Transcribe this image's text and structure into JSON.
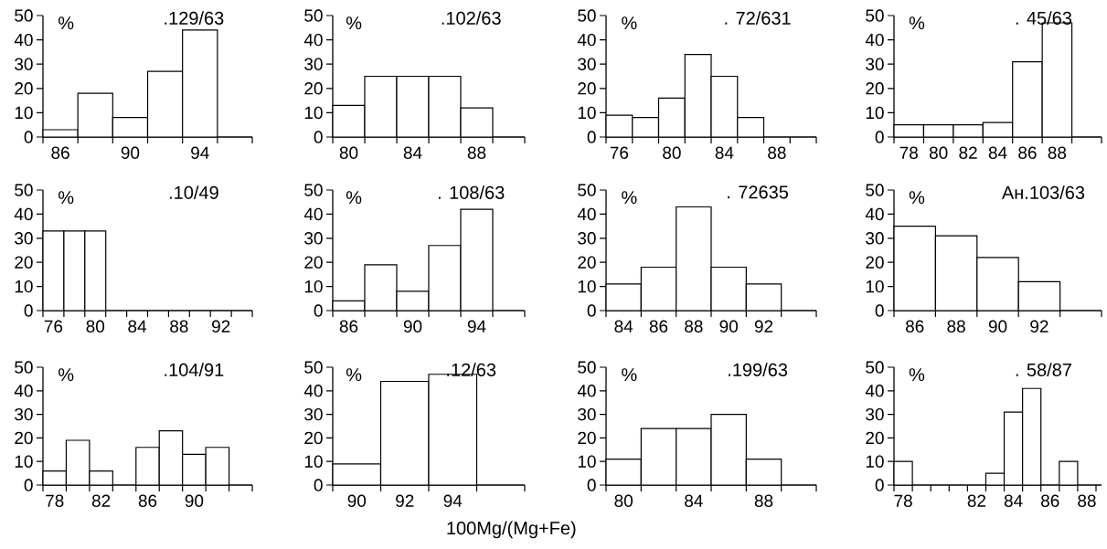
{
  "chart_data": [
    {
      "type": "histogram",
      "title": ".129/63",
      "ylabel": "%",
      "color": "#ffffff",
      "bins": [
        85,
        87,
        89,
        91,
        93,
        95
      ],
      "values": [
        3,
        18,
        8,
        27,
        44
      ],
      "xlim": [
        85,
        97
      ],
      "ylim": [
        0,
        50
      ],
      "yticks": [
        0,
        10,
        20,
        30,
        40,
        50
      ],
      "xticks": [
        {
          "value": 85,
          "label": null
        },
        86,
        {
          "value": 87,
          "label": null
        },
        {
          "value": 89,
          "label": null
        },
        90,
        {
          "value": 91,
          "label": null
        },
        {
          "value": 93,
          "label": null
        },
        94,
        {
          "value": 95,
          "label": null
        },
        {
          "value": 97,
          "label": null
        }
      ]
    },
    {
      "type": "histogram",
      "title": ".102/63",
      "ylabel": "%",
      "color": "#ffffff",
      "bins": [
        79,
        81,
        83,
        85,
        87,
        89
      ],
      "values": [
        13,
        25,
        25,
        25,
        12
      ],
      "xlim": [
        79,
        91
      ],
      "ylim": [
        0,
        50
      ],
      "yticks": [
        0,
        10,
        20,
        30,
        40,
        50
      ],
      "xticks": [
        {
          "value": 79,
          "label": null
        },
        80,
        {
          "value": 81,
          "label": null
        },
        {
          "value": 83,
          "label": null
        },
        84,
        {
          "value": 85,
          "label": null
        },
        {
          "value": 87,
          "label": null
        },
        88,
        {
          "value": 89,
          "label": null
        },
        {
          "value": 91,
          "label": null
        }
      ]
    },
    {
      "type": "histogram",
      "title": ". 72/631",
      "ylabel": "%",
      "color": "#ffffff",
      "bins": [
        75,
        77,
        79,
        81,
        83,
        85,
        87
      ],
      "values": [
        9,
        8,
        16,
        34,
        25,
        8
      ],
      "xlim": [
        75,
        91
      ],
      "ylim": [
        0,
        50
      ],
      "yticks": [
        0,
        10,
        20,
        30,
        40,
        50
      ],
      "xticks": [
        {
          "value": 75,
          "label": null
        },
        76,
        {
          "value": 77,
          "label": null
        },
        {
          "value": 79,
          "label": null
        },
        80,
        {
          "value": 81,
          "label": null
        },
        {
          "value": 83,
          "label": null
        },
        84,
        {
          "value": 85,
          "label": null
        },
        {
          "value": 87,
          "label": null
        },
        88,
        {
          "value": 89,
          "label": null
        },
        {
          "value": 91,
          "label": null
        }
      ]
    },
    {
      "type": "histogram",
      "title": ". 45/63",
      "ylabel": "%",
      "color": "#ffffff",
      "bins": [
        77,
        79,
        81,
        83,
        85,
        87,
        89
      ],
      "values": [
        5,
        5,
        5,
        6,
        31,
        47
      ],
      "xlim": [
        77,
        91
      ],
      "ylim": [
        0,
        50
      ],
      "yticks": [
        0,
        10,
        20,
        30,
        40,
        50
      ],
      "xticks": [
        {
          "value": 77,
          "label": null
        },
        78,
        {
          "value": 79,
          "label": null
        },
        80,
        {
          "value": 81,
          "label": null
        },
        82,
        {
          "value": 83,
          "label": null
        },
        84,
        {
          "value": 85,
          "label": null
        },
        86,
        {
          "value": 87,
          "label": null
        },
        88,
        {
          "value": 89,
          "label": null
        },
        {
          "value": 91,
          "label": null
        }
      ]
    },
    {
      "type": "histogram",
      "title": ".10/49",
      "ylabel": "%",
      "color": "#ffffff",
      "bins": [
        75,
        77,
        79,
        81
      ],
      "values": [
        33,
        33,
        33
      ],
      "xlim": [
        75,
        95
      ],
      "ylim": [
        0,
        50
      ],
      "yticks": [
        0,
        10,
        20,
        30,
        40,
        50
      ],
      "xticks": [
        {
          "value": 75,
          "label": null
        },
        76,
        {
          "value": 77,
          "label": null
        },
        {
          "value": 79,
          "label": null
        },
        80,
        {
          "value": 81,
          "label": null
        },
        {
          "value": 83,
          "label": null
        },
        84,
        {
          "value": 85,
          "label": null
        },
        {
          "value": 87,
          "label": null
        },
        88,
        {
          "value": 89,
          "label": null
        },
        {
          "value": 91,
          "label": null
        },
        92,
        {
          "value": 93,
          "label": null
        },
        {
          "value": 95,
          "label": null
        }
      ]
    },
    {
      "type": "histogram",
      "title": ". 108/63",
      "ylabel": "%",
      "color": "#ffffff",
      "bins": [
        85,
        87,
        89,
        91,
        93,
        95
      ],
      "values": [
        4,
        19,
        8,
        27,
        42
      ],
      "xlim": [
        85,
        97
      ],
      "ylim": [
        0,
        50
      ],
      "yticks": [
        0,
        10,
        20,
        30,
        40,
        50
      ],
      "xticks": [
        {
          "value": 85,
          "label": null
        },
        86,
        {
          "value": 87,
          "label": null
        },
        {
          "value": 89,
          "label": null
        },
        90,
        {
          "value": 91,
          "label": null
        },
        {
          "value": 93,
          "label": null
        },
        94,
        {
          "value": 95,
          "label": null
        },
        {
          "value": 97,
          "label": null
        }
      ]
    },
    {
      "type": "histogram",
      "title": ". 72635",
      "ylabel": "%",
      "color": "#ffffff",
      "bins": [
        83,
        85,
        87,
        89,
        91,
        93
      ],
      "values": [
        11,
        18,
        43,
        18,
        11
      ],
      "xlim": [
        83,
        95
      ],
      "ylim": [
        0,
        50
      ],
      "yticks": [
        0,
        10,
        20,
        30,
        40,
        50
      ],
      "xticks": [
        {
          "value": 83,
          "label": null
        },
        84,
        {
          "value": 85,
          "label": null
        },
        86,
        {
          "value": 87,
          "label": null
        },
        88,
        {
          "value": 89,
          "label": null
        },
        90,
        {
          "value": 91,
          "label": null
        },
        92,
        {
          "value": 93,
          "label": null
        },
        {
          "value": 95,
          "label": null
        }
      ]
    },
    {
      "type": "histogram",
      "title": "Ан.103/63",
      "ylabel": "%",
      "color": "#ffffff",
      "bins": [
        85,
        87,
        89,
        91,
        93
      ],
      "values": [
        35,
        31,
        22,
        12
      ],
      "xlim": [
        85,
        95
      ],
      "ylim": [
        0,
        50
      ],
      "yticks": [
        0,
        10,
        20,
        30,
        40,
        50
      ],
      "xticks": [
        {
          "value": 85,
          "label": null
        },
        86,
        {
          "value": 87,
          "label": null
        },
        88,
        {
          "value": 89,
          "label": null
        },
        90,
        {
          "value": 91,
          "label": null
        },
        92,
        {
          "value": 93,
          "label": null
        },
        {
          "value": 95,
          "label": null
        }
      ]
    },
    {
      "type": "histogram",
      "title": ".104/91",
      "ylabel": "%",
      "color": "#ffffff",
      "bins": [
        77,
        79,
        81,
        83,
        85,
        87,
        89,
        91,
        93
      ],
      "values": [
        6,
        19,
        6,
        null,
        16,
        23,
        13,
        16
      ],
      "xlim": [
        77,
        95
      ],
      "ylim": [
        0,
        50
      ],
      "yticks": [
        0,
        10,
        20,
        30,
        40,
        50
      ],
      "xticks": [
        {
          "value": 77,
          "label": null
        },
        78,
        {
          "value": 79,
          "label": null
        },
        {
          "value": 81,
          "label": null
        },
        82,
        {
          "value": 83,
          "label": null
        },
        {
          "value": 85,
          "label": null
        },
        86,
        {
          "value": 87,
          "label": null
        },
        {
          "value": 89,
          "label": null
        },
        90,
        {
          "value": 91,
          "label": null
        },
        {
          "value": 93,
          "label": null
        },
        {
          "value": 95,
          "label": null
        }
      ]
    },
    {
      "type": "histogram",
      "title": ".12/63",
      "ylabel": "%",
      "xlabel": "100Mg/(Mg+Fe)",
      "color": "#ffffff",
      "bins": [
        89,
        91,
        93,
        95
      ],
      "values": [
        9,
        44,
        47
      ],
      "xlim": [
        89,
        97
      ],
      "ylim": [
        0,
        50
      ],
      "yticks": [
        0,
        10,
        20,
        30,
        40,
        50
      ],
      "xticks": [
        {
          "value": 89,
          "label": null
        },
        90,
        {
          "value": 91,
          "label": null
        },
        92,
        {
          "value": 93,
          "label": null
        },
        94,
        {
          "value": 95,
          "label": null
        },
        {
          "value": 97,
          "label": null
        }
      ]
    },
    {
      "type": "histogram",
      "title": ".199/63",
      "ylabel": "%",
      "color": "#ffffff",
      "bins": [
        79,
        81,
        83,
        85,
        87,
        89
      ],
      "values": [
        11,
        24,
        24,
        30,
        11
      ],
      "xlim": [
        79,
        91
      ],
      "ylim": [
        0,
        50
      ],
      "yticks": [
        0,
        10,
        20,
        30,
        40,
        50
      ],
      "xticks": [
        {
          "value": 79,
          "label": null
        },
        80,
        {
          "value": 81,
          "label": null
        },
        {
          "value": 83,
          "label": null
        },
        84,
        {
          "value": 85,
          "label": null
        },
        {
          "value": 87,
          "label": null
        },
        88,
        {
          "value": 89,
          "label": null
        },
        {
          "value": 91,
          "label": null
        }
      ]
    },
    {
      "type": "histogram",
      "title": ". 58/87",
      "ylabel": "%",
      "color": "#ffffff",
      "bins": [
        77.5,
        78.5,
        79.5,
        80.5,
        81.5,
        82.5,
        83.5,
        84.5,
        85.5,
        86.5,
        87.5
      ],
      "values": [
        10,
        null,
        null,
        null,
        null,
        5,
        31,
        41,
        null,
        10
      ],
      "xlim": [
        77.5,
        88.8
      ],
      "ylim": [
        0,
        50
      ],
      "yticks": [
        0,
        10,
        20,
        30,
        40,
        50
      ],
      "xticks": [
        {
          "value": 77.5,
          "label": null
        },
        78,
        {
          "value": 78.5,
          "label": null
        },
        {
          "value": 79.5,
          "label": null
        },
        {
          "value": 80.5,
          "label": null
        },
        {
          "value": 81.5,
          "label": null
        },
        82,
        {
          "value": 82.5,
          "label": null
        },
        {
          "value": 83.5,
          "label": null
        },
        84,
        {
          "value": 84.5,
          "label": null
        },
        {
          "value": 85.5,
          "label": null
        },
        86,
        {
          "value": 86.5,
          "label": null
        },
        {
          "value": 87.5,
          "label": null
        },
        88,
        {
          "value": 88.5,
          "label": null
        }
      ]
    }
  ]
}
